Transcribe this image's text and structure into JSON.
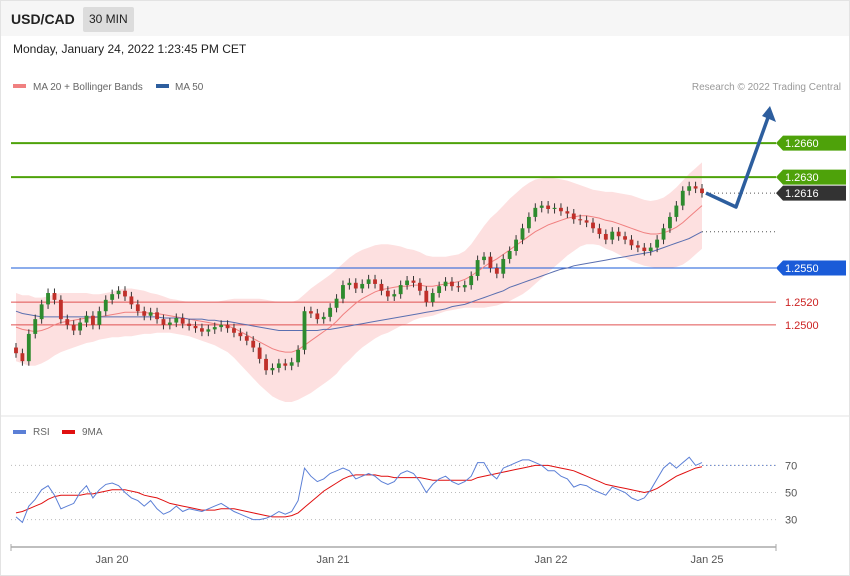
{
  "header": {
    "pair": "USD/CAD",
    "timeframe": "30 MIN"
  },
  "date_text": "Monday, January 24, 2022 1:23:45 PM CET",
  "attribution": "Research © 2022 Trading Central",
  "colors": {
    "bb_fill": "#fde0e0",
    "ma20": "#f08080",
    "ma50": "#5a6fb0",
    "bull": "#2e8b2e",
    "bear": "#c0302a",
    "target": "#4ea20a",
    "pivot": "#1a5bd8",
    "support": "#e05050",
    "arrow": "#2d5e9e",
    "current": "#333333"
  },
  "chart_data": [
    {
      "type": "candlestick",
      "legend": [
        {
          "name": "MA 20 + Bollinger Bands",
          "color": "#f08080"
        },
        {
          "name": "MA 50",
          "color": "#2d5e9e"
        }
      ],
      "x_tick_labels": [
        "Jan 20",
        "Jan 21",
        "Jan 22",
        "Jan 25"
      ],
      "levels": [
        {
          "value": 1.266,
          "label": "1.2660",
          "kind": "target"
        },
        {
          "value": 1.263,
          "label": "1.2630",
          "kind": "target"
        },
        {
          "value": 1.2616,
          "label": "1.2616",
          "kind": "current"
        },
        {
          "value": 1.255,
          "label": "1.2550",
          "kind": "pivot"
        },
        {
          "value": 1.252,
          "label": "1.2520",
          "kind": "support"
        },
        {
          "value": 1.25,
          "label": "1.2500",
          "kind": "support"
        }
      ],
      "ylim": [
        1.2425,
        1.2705
      ],
      "close_series": [
        1.2475,
        1.2468,
        1.2492,
        1.2505,
        1.2518,
        1.2528,
        1.2522,
        1.2505,
        1.25,
        1.2495,
        1.2502,
        1.2508,
        1.25,
        1.2512,
        1.2522,
        1.2527,
        1.253,
        1.2525,
        1.2518,
        1.2512,
        1.2508,
        1.2511,
        1.2505,
        1.25,
        1.2502,
        1.2506,
        1.2501,
        1.2499,
        1.2497,
        1.2494,
        1.2496,
        1.2498,
        1.25,
        1.2497,
        1.2493,
        1.249,
        1.2486,
        1.248,
        1.247,
        1.246,
        1.2462,
        1.2466,
        1.2464,
        1.2467,
        1.2478,
        1.2512,
        1.251,
        1.2505,
        1.2507,
        1.2515,
        1.2523,
        1.2535,
        1.2537,
        1.2532,
        1.2536,
        1.254,
        1.2536,
        1.253,
        1.2525,
        1.2527,
        1.2535,
        1.2539,
        1.2537,
        1.253,
        1.252,
        1.2528,
        1.2534,
        1.2538,
        1.2534,
        1.2533,
        1.2535,
        1.2543,
        1.2557,
        1.256,
        1.255,
        1.2545,
        1.2558,
        1.2565,
        1.2575,
        1.2585,
        1.2595,
        1.2603,
        1.2605,
        1.2602,
        1.2603,
        1.26,
        1.2598,
        1.2593,
        1.2592,
        1.259,
        1.2585,
        1.258,
        1.2575,
        1.2582,
        1.2578,
        1.2575,
        1.257,
        1.2568,
        1.2565,
        1.2568,
        1.2575,
        1.2585,
        1.2595,
        1.2605,
        1.2618,
        1.2622,
        1.262,
        1.2616
      ],
      "open_series": [
        1.248,
        1.2475,
        1.2468,
        1.2492,
        1.2505,
        1.2518,
        1.2528,
        1.2522,
        1.2505,
        1.25,
        1.2495,
        1.2502,
        1.2508,
        1.25,
        1.2512,
        1.2522,
        1.2527,
        1.253,
        1.2525,
        1.2518,
        1.2512,
        1.2508,
        1.2511,
        1.2505,
        1.25,
        1.2502,
        1.2506,
        1.2501,
        1.2499,
        1.2497,
        1.2494,
        1.2496,
        1.2498,
        1.25,
        1.2497,
        1.2493,
        1.249,
        1.2486,
        1.248,
        1.247,
        1.246,
        1.2462,
        1.2466,
        1.2464,
        1.2467,
        1.2478,
        1.2512,
        1.251,
        1.2505,
        1.2507,
        1.2515,
        1.2523,
        1.2535,
        1.2537,
        1.2532,
        1.2536,
        1.254,
        1.2536,
        1.253,
        1.2525,
        1.2527,
        1.2535,
        1.2539,
        1.2537,
        1.253,
        1.252,
        1.2528,
        1.2534,
        1.2538,
        1.2534,
        1.2533,
        1.2535,
        1.2543,
        1.2557,
        1.256,
        1.255,
        1.2545,
        1.2558,
        1.2565,
        1.2575,
        1.2585,
        1.2595,
        1.2603,
        1.2605,
        1.2602,
        1.2603,
        1.26,
        1.2598,
        1.2593,
        1.2592,
        1.259,
        1.2585,
        1.258,
        1.2575,
        1.2582,
        1.2578,
        1.2575,
        1.257,
        1.2568,
        1.2565,
        1.2568,
        1.2575,
        1.2585,
        1.2595,
        1.2605,
        1.2618,
        1.2622,
        1.262
      ],
      "ma20": [
        1.2498,
        1.2496,
        1.2495,
        1.2494,
        1.2495,
        1.2497,
        1.25,
        1.2502,
        1.2503,
        1.2504,
        1.2505,
        1.2506,
        1.2506,
        1.2507,
        1.2508,
        1.2509,
        1.251,
        1.2511,
        1.2511,
        1.2511,
        1.2511,
        1.251,
        1.251,
        1.2509,
        1.2508,
        1.2507,
        1.2506,
        1.2505,
        1.2504,
        1.2503,
        1.2502,
        1.2501,
        1.25,
        1.2499,
        1.2497,
        1.2494,
        1.2491,
        1.2488,
        1.2485,
        1.2482,
        1.2479,
        1.2477,
        1.2476,
        1.2476,
        1.2478,
        1.2482,
        1.2486,
        1.249,
        1.2494,
        1.2498,
        1.2503,
        1.2509,
        1.2514,
        1.2519,
        1.2523,
        1.2526,
        1.2529,
        1.2531,
        1.2532,
        1.2533,
        1.2534,
        1.2534,
        1.2535,
        1.2535,
        1.2534,
        1.2534,
        1.2535,
        1.2536,
        1.2537,
        1.2538,
        1.254,
        1.2543,
        1.2547,
        1.2551,
        1.2555,
        1.2558,
        1.2562,
        1.2566,
        1.257,
        1.2574,
        1.2578,
        1.2582,
        1.2585,
        1.2588,
        1.259,
        1.2592,
        1.2594,
        1.2595,
        1.2596,
        1.2596,
        1.2595,
        1.2594,
        1.2592,
        1.2591,
        1.2589,
        1.2587,
        1.2585,
        1.2583,
        1.2581,
        1.258,
        1.258,
        1.2581,
        1.2583,
        1.2586,
        1.259,
        1.2595,
        1.26,
        1.2605
      ],
      "bb_width": [
        0.003,
        0.003,
        0.0031,
        0.003,
        0.0029,
        0.0028,
        0.0027,
        0.0026,
        0.0025,
        0.0024,
        0.0023,
        0.0022,
        0.0021,
        0.002,
        0.002,
        0.002,
        0.0021,
        0.0021,
        0.0021,
        0.002,
        0.0019,
        0.0018,
        0.0017,
        0.0016,
        0.0015,
        0.0015,
        0.0015,
        0.0015,
        0.0016,
        0.0017,
        0.0018,
        0.0019,
        0.0021,
        0.0023,
        0.0026,
        0.0029,
        0.0032,
        0.0035,
        0.0038,
        0.004,
        0.0042,
        0.0043,
        0.0044,
        0.0044,
        0.0044,
        0.0045,
        0.0046,
        0.0046,
        0.0046,
        0.0046,
        0.0046,
        0.0045,
        0.0045,
        0.0044,
        0.0043,
        0.0042,
        0.0041,
        0.004,
        0.0039,
        0.0037,
        0.0035,
        0.0033,
        0.0031,
        0.0029,
        0.0027,
        0.0026,
        0.0025,
        0.0024,
        0.0024,
        0.0024,
        0.0025,
        0.0028,
        0.0032,
        0.0036,
        0.0039,
        0.0041,
        0.0043,
        0.0045,
        0.0046,
        0.0047,
        0.0047,
        0.0046,
        0.0044,
        0.0042,
        0.0039,
        0.0036,
        0.0033,
        0.003,
        0.0027,
        0.0025,
        0.0024,
        0.0024,
        0.0025,
        0.0026,
        0.0027,
        0.0028,
        0.0029,
        0.0029,
        0.0029,
        0.0029,
        0.003,
        0.0031,
        0.0033,
        0.0035,
        0.0037,
        0.0038,
        0.0038,
        0.0038
      ],
      "ma50": [
        1.2512,
        1.251,
        1.2509,
        1.2508,
        1.2507,
        1.2507,
        1.2507,
        1.2507,
        1.2507,
        1.2507,
        1.2507,
        1.2507,
        1.2507,
        1.2507,
        1.2507,
        1.2507,
        1.2507,
        1.2507,
        1.2507,
        1.2507,
        1.2507,
        1.2507,
        1.2507,
        1.2506,
        1.2506,
        1.2506,
        1.2506,
        1.2505,
        1.2505,
        1.2505,
        1.2504,
        1.2504,
        1.2503,
        1.2503,
        1.2502,
        1.2501,
        1.25,
        1.2499,
        1.2498,
        1.2497,
        1.2496,
        1.2495,
        1.2495,
        1.2495,
        1.2495,
        1.2495,
        1.2495,
        1.2495,
        1.2496,
        1.2496,
        1.2497,
        1.2498,
        1.2499,
        1.25,
        1.2501,
        1.2502,
        1.2503,
        1.2504,
        1.2505,
        1.2506,
        1.2507,
        1.2508,
        1.2509,
        1.251,
        1.2511,
        1.2512,
        1.2513,
        1.2514,
        1.2516,
        1.2517,
        1.2518,
        1.252,
        1.2522,
        1.2524,
        1.2526,
        1.2528,
        1.253,
        1.2533,
        1.2535,
        1.2537,
        1.2539,
        1.2541,
        1.2543,
        1.2545,
        1.2547,
        1.2549,
        1.255,
        1.2552,
        1.2553,
        1.2554,
        1.2555,
        1.2556,
        1.2557,
        1.2558,
        1.2559,
        1.256,
        1.2561,
        1.2562,
        1.2563,
        1.2564,
        1.2566,
        1.2568,
        1.257,
        1.2572,
        1.2574,
        1.2576,
        1.2579,
        1.2582
      ]
    },
    {
      "type": "line",
      "legend": [
        {
          "name": "RSI",
          "color": "#5b7fd6"
        },
        {
          "name": "9MA",
          "color": "#e01010"
        }
      ],
      "y_tick_labels": [
        "70",
        "50",
        "30"
      ],
      "ylim": [
        15,
        85
      ],
      "rsi": [
        32,
        28,
        40,
        45,
        52,
        55,
        48,
        38,
        40,
        42,
        50,
        55,
        46,
        52,
        56,
        57,
        55,
        50,
        46,
        44,
        40,
        44,
        38,
        34,
        36,
        40,
        36,
        38,
        37,
        36,
        38,
        40,
        42,
        39,
        36,
        34,
        32,
        30,
        30,
        31,
        33,
        36,
        34,
        36,
        44,
        68,
        62,
        58,
        60,
        64,
        66,
        68,
        66,
        60,
        62,
        64,
        62,
        58,
        56,
        58,
        64,
        66,
        64,
        58,
        50,
        56,
        60,
        62,
        58,
        56,
        58,
        62,
        72,
        72,
        64,
        60,
        68,
        70,
        72,
        74,
        74,
        72,
        70,
        66,
        66,
        62,
        60,
        54,
        56,
        55,
        52,
        50,
        48,
        54,
        52,
        50,
        46,
        44,
        46,
        52,
        60,
        68,
        72,
        68,
        72,
        76,
        70,
        72
      ],
      "ma9": [
        35,
        36,
        38,
        40,
        42,
        45,
        47,
        48,
        48,
        48,
        48,
        49,
        49,
        50,
        51,
        52,
        52,
        52,
        51,
        50,
        48,
        47,
        46,
        44,
        42,
        41,
        40,
        39,
        38,
        37,
        37,
        37,
        38,
        38,
        38,
        37,
        36,
        35,
        34,
        33,
        32,
        32,
        32,
        33,
        35,
        39,
        43,
        47,
        51,
        54,
        57,
        60,
        62,
        63,
        63,
        63,
        63,
        62,
        62,
        61,
        61,
        61,
        61,
        61,
        60,
        59,
        59,
        59,
        59,
        59,
        59,
        59,
        61,
        62,
        63,
        64,
        65,
        66,
        67,
        68,
        69,
        70,
        70,
        70,
        69,
        68,
        67,
        66,
        64,
        62,
        60,
        58,
        56,
        55,
        54,
        53,
        52,
        51,
        50,
        51,
        53,
        56,
        59,
        62,
        64,
        66,
        68,
        69
      ]
    }
  ]
}
